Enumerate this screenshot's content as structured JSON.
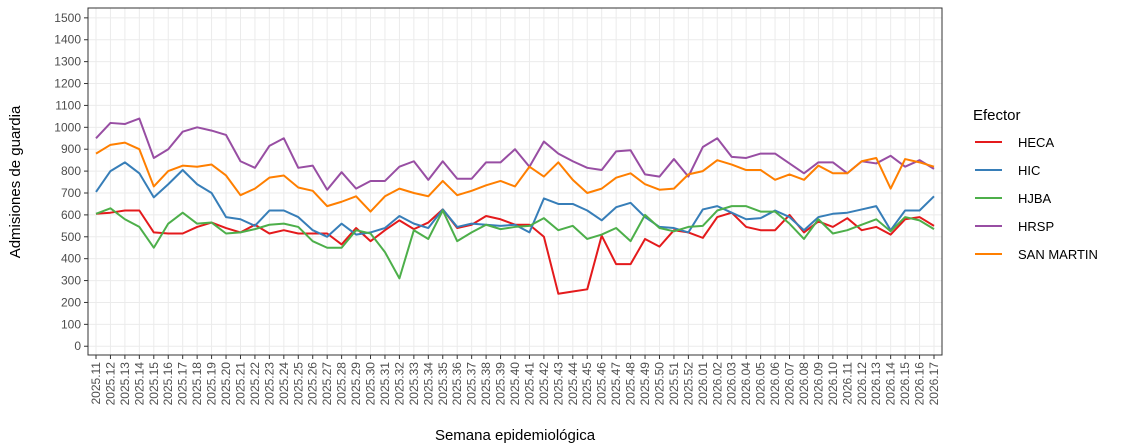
{
  "chart_data": {
    "type": "line",
    "x_label": "Semana epidemiológica",
    "y_label": "Admisiones de guardia",
    "legend_title": "Efector",
    "legend_position": "right",
    "grid": true,
    "categories": [
      "2025.11",
      "2025.12",
      "2025.13",
      "2025.14",
      "2025.15",
      "2025.16",
      "2025.17",
      "2025.18",
      "2025.19",
      "2025.20",
      "2025.21",
      "2025.22",
      "2025.23",
      "2025.24",
      "2025.25",
      "2025.26",
      "2025.27",
      "2025.28",
      "2025.29",
      "2025.30",
      "2025.31",
      "2025.32",
      "2025.33",
      "2025.34",
      "2025.35",
      "2025.36",
      "2025.37",
      "2025.38",
      "2025.39",
      "2025.40",
      "2025.41",
      "2025.42",
      "2025.43",
      "2025.44",
      "2025.45",
      "2025.46",
      "2025.47",
      "2025.48",
      "2025.49",
      "2025.50",
      "2025.51",
      "2025.52",
      "2026.01",
      "2026.02",
      "2026.03",
      "2026.04",
      "2026.05",
      "2026.06",
      "2026.07",
      "2026.08",
      "2026.09",
      "2026.10",
      "2026.11",
      "2026.12",
      "2026.13",
      "2026.14",
      "2026.15",
      "2026.16",
      "2026.17"
    ],
    "ylim": [
      -40,
      1545
    ],
    "yticks": [
      0,
      100,
      200,
      300,
      400,
      500,
      600,
      700,
      800,
      900,
      1000,
      1100,
      1200,
      1300,
      1400,
      1500
    ],
    "series": [
      {
        "name": "HECA",
        "color": "#e41a1c",
        "values": [
          605,
          610,
          620,
          620,
          520,
          515,
          515,
          545,
          565,
          540,
          520,
          555,
          515,
          530,
          515,
          515,
          515,
          465,
          540,
          480,
          530,
          575,
          535,
          565,
          625,
          540,
          555,
          595,
          580,
          555,
          555,
          500,
          240,
          250,
          260,
          505,
          375,
          375,
          490,
          455,
          530,
          520,
          495,
          590,
          610,
          545,
          530,
          530,
          600,
          520,
          570,
          545,
          585,
          530,
          545,
          510,
          580,
          590,
          550
        ]
      },
      {
        "name": "HIC",
        "color": "#377eb8",
        "values": [
          705,
          800,
          840,
          790,
          680,
          740,
          805,
          740,
          700,
          590,
          580,
          550,
          620,
          620,
          590,
          530,
          500,
          560,
          510,
          520,
          540,
          595,
          560,
          540,
          625,
          545,
          560,
          555,
          550,
          555,
          520,
          675,
          650,
          650,
          620,
          575,
          635,
          655,
          590,
          545,
          540,
          520,
          625,
          640,
          610,
          580,
          585,
          620,
          590,
          530,
          590,
          605,
          610,
          625,
          640,
          530,
          620,
          620,
          685
        ]
      },
      {
        "name": "HJBA",
        "color": "#4daf4a",
        "values": [
          605,
          630,
          580,
          545,
          450,
          560,
          610,
          560,
          565,
          515,
          520,
          535,
          555,
          560,
          545,
          480,
          450,
          450,
          530,
          515,
          430,
          310,
          530,
          490,
          620,
          480,
          520,
          555,
          535,
          545,
          550,
          585,
          530,
          550,
          490,
          510,
          540,
          480,
          600,
          540,
          525,
          545,
          550,
          620,
          640,
          640,
          615,
          615,
          560,
          490,
          580,
          515,
          530,
          555,
          580,
          525,
          590,
          575,
          535
        ]
      },
      {
        "name": "HRSP",
        "color": "#984ea3",
        "values": [
          950,
          1020,
          1015,
          1040,
          860,
          900,
          980,
          1000,
          985,
          965,
          845,
          815,
          915,
          950,
          815,
          825,
          715,
          795,
          720,
          755,
          755,
          820,
          845,
          760,
          845,
          765,
          765,
          840,
          840,
          900,
          820,
          935,
          880,
          845,
          815,
          805,
          890,
          895,
          785,
          775,
          855,
          775,
          910,
          950,
          865,
          860,
          880,
          880,
          835,
          790,
          840,
          840,
          790,
          845,
          835,
          870,
          820,
          850,
          810
        ]
      },
      {
        "name": "SAN MARTIN",
        "color": "#ff7f00",
        "values": [
          880,
          920,
          930,
          900,
          730,
          800,
          825,
          820,
          830,
          780,
          690,
          720,
          770,
          780,
          725,
          710,
          640,
          660,
          685,
          615,
          685,
          720,
          700,
          685,
          755,
          690,
          710,
          735,
          755,
          730,
          820,
          775,
          840,
          760,
          700,
          720,
          770,
          790,
          740,
          715,
          720,
          785,
          800,
          850,
          830,
          805,
          805,
          760,
          785,
          760,
          825,
          790,
          790,
          845,
          860,
          720,
          855,
          840,
          820
        ]
      }
    ]
  }
}
